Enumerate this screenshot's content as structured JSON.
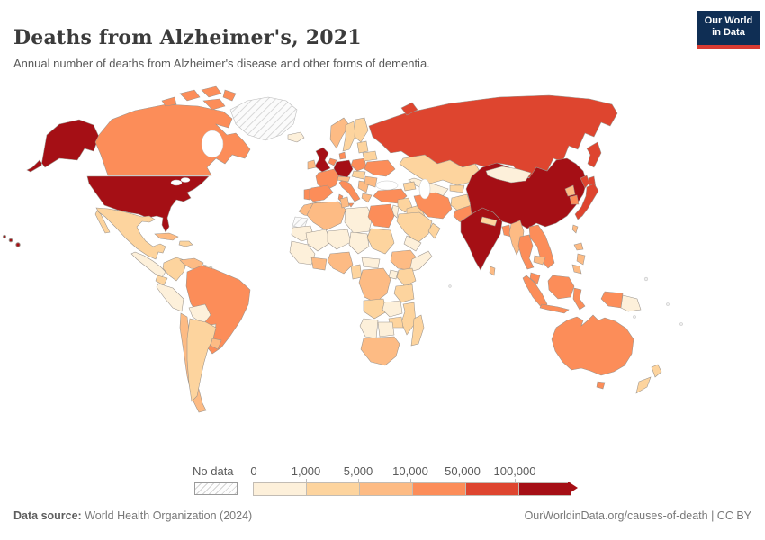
{
  "header": {
    "title": "Deaths from Alzheimer's, 2021",
    "subtitle": "Annual number of deaths from Alzheimer's disease and other forms of dementia."
  },
  "logo": {
    "line1": "Our World",
    "line2": "in Data",
    "bg_color": "#0f2e54",
    "accent_color": "#d93b32"
  },
  "legend": {
    "no_data_label": "No data",
    "ticks": [
      "0",
      "1,000",
      "5,000",
      "10,000",
      "50,000",
      "100,000"
    ],
    "colors": [
      "#fdf0da",
      "#fdd49e",
      "#fdbb84",
      "#fc8d59",
      "#de452f",
      "#a50f15"
    ],
    "segment_width": 58
  },
  "footer": {
    "source_label": "Data source:",
    "source_text": " World Health Organization (2024)",
    "credit_text": "OurWorldinData.org/causes-of-death | CC BY"
  },
  "map": {
    "stroke_color": "#9a938c",
    "buckets": {
      "b0": "#fdf0da",
      "b1": "#fdd49e",
      "b2": "#fdbb84",
      "b3": "#fc8d59",
      "b4": "#de452f",
      "b5": "#a50f15"
    },
    "regions": {
      "alaska": "b5",
      "canada": "b3",
      "greenland": "no_data",
      "iceland": "b0",
      "usa": "b5",
      "hawaii": "b5",
      "mexico": "b1",
      "central_america": "b0",
      "cuba": "b2",
      "hispaniola": "b1",
      "colombia": "b1",
      "venezuela": "b2",
      "guyana": "b0",
      "french_guiana": "no_data",
      "ecuador": "b1",
      "peru": "b0",
      "brazil": "b3",
      "bolivia": "b0",
      "paraguay": "b0",
      "chile": "b2",
      "argentina": "b1",
      "uruguay": "b2",
      "uk": "b5",
      "ireland": "b2",
      "norway": "b2",
      "sweden": "b1",
      "finland": "b1",
      "denmark": "b3",
      "germany": "b5",
      "benelux": "b3",
      "france": "b3",
      "spain": "b3",
      "portugal": "b3",
      "italy": "b3",
      "alpine": "b2",
      "poland": "b3",
      "czech_hungary": "b1",
      "balkans": "b2",
      "greece": "b2",
      "romania": "b2",
      "ukraine": "b3",
      "belarus": "b1",
      "baltics": "b1",
      "russia": "b4",
      "turkey": "b3",
      "caucasus": "b1",
      "syria": "b1",
      "iraq": "b1",
      "israel_jordan": "b0",
      "saudi": "b1",
      "yemen": "b0",
      "oman": "b1",
      "iran": "b3",
      "afghanistan": "b1",
      "pakistan": "b3",
      "kazakhstan": "b1",
      "uzbek_turkmen": "b0",
      "kyrgyz_tajik": "b1",
      "india": "b5",
      "nepal": "b1",
      "bangladesh": "b3",
      "sri_lanka": "b2",
      "myanmar": "b2",
      "thailand": "b3",
      "vietnam": "b3",
      "cambodia": "b2",
      "malaysia": "b3",
      "china": "b5",
      "mongolia": "b0",
      "n_korea": "b2",
      "s_korea": "b3",
      "japan": "b4",
      "taiwan": "b2",
      "philippines": "b2",
      "sumatra": "b3",
      "java": "b3",
      "borneo": "b3",
      "sulawesi": "b3",
      "west_papua": "b3",
      "png": "b0",
      "australia": "b3",
      "tasmania": "b3",
      "nz": "b1",
      "morocco": "b2",
      "w_sahara": "no_data",
      "algeria": "b2",
      "tunisia": "b2",
      "libya": "b0",
      "egypt": "b3",
      "mauritania": "b0",
      "mali": "b0",
      "niger": "b0",
      "chad": "b0",
      "sudan": "b1",
      "senegal_guinea": "b0",
      "ghana_ivory": "b2",
      "nigeria": "b2",
      "cameroon": "b1",
      "car": "b0",
      "ethiopia": "b2",
      "somalia": "b0",
      "kenya": "b1",
      "uganda": "b0",
      "drc": "b2",
      "tanzania": "b1",
      "angola": "b1",
      "zambia": "b0",
      "mozambique": "b1",
      "zimbabwe": "b1",
      "namibia": "b0",
      "botswana": "b0",
      "south_africa": "b2",
      "madagascar": "b1"
    }
  },
  "chart_data": {
    "type": "choropleth",
    "title": "Deaths from Alzheimer's, 2021",
    "subtitle": "Annual number of deaths from Alzheimer's disease and other forms of dementia.",
    "unit": "deaths per year",
    "legend_position": "bottom",
    "bins": [
      {
        "label": "No data",
        "color": "hatched"
      },
      {
        "label": "0-1,000",
        "color": "#fdf0da"
      },
      {
        "label": "1,000-5,000",
        "color": "#fdd49e"
      },
      {
        "label": "5,000-10,000",
        "color": "#fdbb84"
      },
      {
        "label": "10,000-50,000",
        "color": "#fc8d59"
      },
      {
        "label": "50,000-100,000",
        "color": "#de452f"
      },
      {
        "label": "100,000+",
        "color": "#a50f15"
      }
    ],
    "countries": {
      "United States": "100,000+",
      "China": "100,000+",
      "India": "100,000+",
      "Germany": "100,000+",
      "United Kingdom": "100,000+",
      "Japan": "50,000-100,000",
      "Russia": "50,000-100,000",
      "Canada": "10,000-50,000",
      "Brazil": "10,000-50,000",
      "Australia": "10,000-50,000",
      "France": "10,000-50,000",
      "Italy": "10,000-50,000",
      "Spain": "10,000-50,000",
      "Turkey": "10,000-50,000",
      "Iran": "10,000-50,000",
      "Egypt": "10,000-50,000",
      "Pakistan": "10,000-50,000",
      "Thailand": "10,000-50,000",
      "Vietnam": "10,000-50,000",
      "Indonesia": "10,000-50,000",
      "Ukraine": "10,000-50,000",
      "Poland": "10,000-50,000",
      "South Korea": "10,000-50,000",
      "Bangladesh": "10,000-50,000",
      "Chile": "5,000-10,000",
      "Venezuela": "5,000-10,000",
      "Morocco": "5,000-10,000",
      "Algeria": "5,000-10,000",
      "Nigeria": "5,000-10,000",
      "Ethiopia": "5,000-10,000",
      "DR Congo": "5,000-10,000",
      "South Africa": "5,000-10,000",
      "Philippines": "5,000-10,000",
      "Cuba": "5,000-10,000",
      "Norway": "5,000-10,000",
      "Mexico": "1,000-5,000",
      "Argentina": "1,000-5,000",
      "Colombia": "1,000-5,000",
      "Kazakhstan": "1,000-5,000",
      "Saudi Arabia": "1,000-5,000",
      "Sweden": "1,000-5,000",
      "Madagascar": "1,000-5,000",
      "New Zealand": "1,000-5,000",
      "Peru": "0-1,000",
      "Bolivia": "0-1,000",
      "Mongolia": "0-1,000",
      "Papua New Guinea": "0-1,000",
      "Greenland": "No data",
      "Western Sahara": "No data",
      "French Guiana": "No data"
    }
  }
}
